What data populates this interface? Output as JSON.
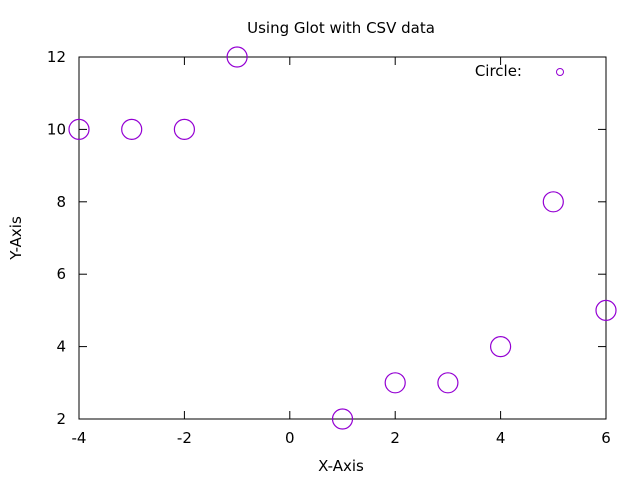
{
  "chart_data": {
    "type": "scatter",
    "title": "Using Glot with CSV data",
    "xlabel": "X-Axis",
    "ylabel": "Y-Axis",
    "xlim": [
      -4,
      6
    ],
    "ylim": [
      2,
      12
    ],
    "xticks": [
      -4,
      -2,
      0,
      2,
      4,
      6
    ],
    "yticks": [
      2,
      4,
      6,
      8,
      10,
      12
    ],
    "xtick_labels": [
      "-4",
      "-2",
      "0",
      "2",
      "4",
      "6"
    ],
    "ytick_labels": [
      "2",
      "4",
      "6",
      "8",
      "10",
      "12"
    ],
    "grid": false,
    "legend_position": "top-right",
    "series": [
      {
        "name": "Circle:",
        "color": "#9400d3",
        "marker": "circle",
        "points": [
          {
            "x": -4,
            "y": 10
          },
          {
            "x": -3,
            "y": 10
          },
          {
            "x": -2,
            "y": 10
          },
          {
            "x": -1,
            "y": 12
          },
          {
            "x": 1,
            "y": 2
          },
          {
            "x": 2,
            "y": 3
          },
          {
            "x": 3,
            "y": 3
          },
          {
            "x": 4,
            "y": 4
          },
          {
            "x": 5,
            "y": 8
          },
          {
            "x": 6,
            "y": 5
          }
        ]
      }
    ]
  }
}
